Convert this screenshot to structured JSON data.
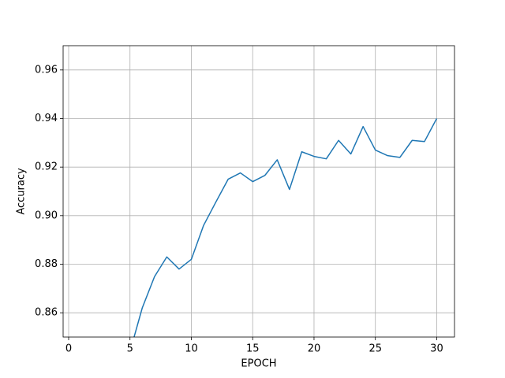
{
  "chart_data": {
    "type": "line",
    "x_label": "EPOCH",
    "y_label": "Accuracy",
    "x": [
      1,
      2,
      3,
      4,
      5,
      6,
      7,
      8,
      9,
      10,
      11,
      12,
      13,
      14,
      15,
      16,
      17,
      18,
      19,
      20,
      21,
      22,
      23,
      24,
      25,
      26,
      27,
      28,
      29,
      30
    ],
    "series": [
      {
        "color": "#1f77b4",
        "values": [
          null,
          null,
          null,
          null,
          0.844,
          0.862,
          0.8749,
          0.883,
          0.878,
          0.882,
          0.896,
          0.9056,
          0.915,
          0.9176,
          0.914,
          0.9166,
          0.923,
          0.9108,
          0.9263,
          0.9244,
          0.9234,
          0.931,
          0.9254,
          0.9367,
          0.927,
          0.9247,
          0.924,
          0.931,
          0.9305,
          0.94
        ]
      }
    ],
    "xlim": [
      -0.45,
      31.45
    ],
    "ylim": [
      0.85,
      0.97
    ],
    "xticks": [
      0,
      5,
      10,
      15,
      20,
      25,
      30
    ],
    "yticks": [
      0.86,
      0.88,
      {
        "value": 0.9,
        "label": "0.90"
      },
      0.92,
      0.94,
      0.96
    ],
    "grid": true
  }
}
